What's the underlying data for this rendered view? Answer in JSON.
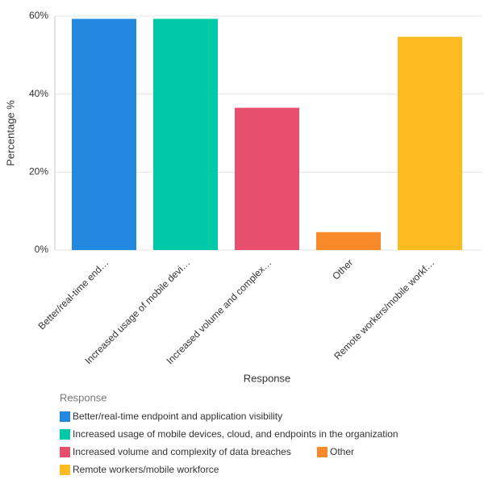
{
  "chart_data": {
    "type": "bar",
    "x_label": "Response",
    "y_label": "Percentage %",
    "categories": [
      "Better/real-time end…",
      "Increased usage of mobile devi…",
      "Increased volume and complex…",
      "Other",
      "Remote workers/mobile workf…"
    ],
    "values": [
      59.3,
      59.3,
      36.5,
      4.6,
      54.7
    ],
    "colors": [
      "#2389e0",
      "#00c9a7",
      "#e84f6f",
      "#f7892a",
      "#fdbb22"
    ],
    "ylim": [
      0,
      60
    ],
    "yticks": [
      {
        "value": 0,
        "label": "0%"
      },
      {
        "value": 20,
        "label": "20%"
      },
      {
        "value": 40,
        "label": "40%"
      },
      {
        "value": 60,
        "label": "60%"
      }
    ],
    "grid": true,
    "legend_title": "Response",
    "legend_labels": [
      "Better/real-time endpoint and application visibility",
      "Increased usage of mobile devices, cloud, and endpoints in the organization",
      "Increased volume and complexity of data breaches",
      "Other",
      "Remote workers/mobile workforce"
    ]
  }
}
